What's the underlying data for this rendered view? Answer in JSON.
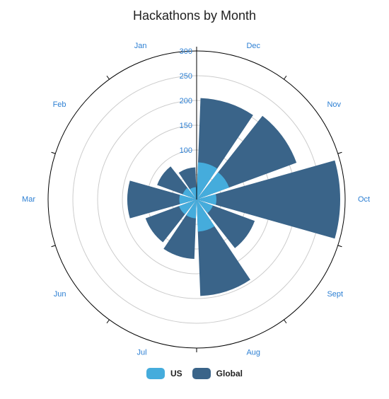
{
  "colors": {
    "us": "#45acdc",
    "global": "#3a6489",
    "label": "#2c7fd3",
    "axis": "#000000",
    "grid": "#cccccc"
  },
  "chart_data": {
    "type": "polar-bar",
    "title": "Hackathons by Month",
    "categories": [
      "Dec",
      "Nov",
      "Oct",
      "Sept",
      "Aug",
      "Jul",
      "Jun",
      "Mar",
      "Feb",
      "Jan"
    ],
    "series": [
      {
        "name": "US",
        "values": [
          75,
          70,
          40,
          35,
          65,
          38,
          38,
          35,
          30,
          25
        ]
      },
      {
        "name": "Global",
        "values": [
          205,
          215,
          290,
          125,
          195,
          120,
          110,
          140,
          85,
          65
        ]
      }
    ],
    "radial_ticks": [
      "100",
      "150",
      "200",
      "250",
      "300"
    ],
    "rlim": [
      0,
      300
    ],
    "grid": true,
    "legend": "bottom-center"
  }
}
